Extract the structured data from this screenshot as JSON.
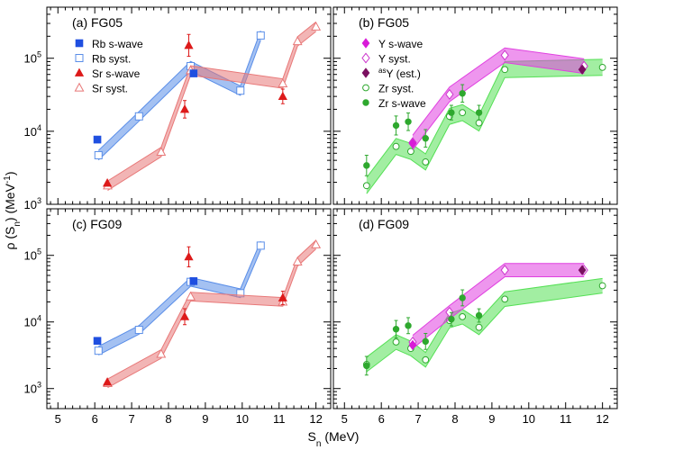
{
  "figure": {
    "ylabel": "ρ (S",
    "ylabel_sub": "n",
    "ylabel_tail": ") (MeV",
    "ylabel_sup": "-1",
    "ylabel_end": ")",
    "xlabel": "S",
    "xlabel_sub": "n",
    "xlabel_tail": " (MeV)",
    "y_tick_base": "10",
    "y_tick_exponents": [
      "3",
      "4",
      "5"
    ],
    "x_tick_labels": [
      "5",
      "6",
      "7",
      "8",
      "9",
      "10",
      "11",
      "12"
    ]
  },
  "chart_data": [
    {
      "id": "a",
      "type": "scatter",
      "title": "(a) FG05",
      "xlabel": "S_n (MeV)",
      "ylabel": "rho(S_n) (MeV^-1)",
      "xlim": [
        4.7,
        12.4
      ],
      "ylim": [
        1000,
        500000
      ],
      "yscale": "log",
      "legend": [
        {
          "label": "Rb s-wave",
          "marker": "square",
          "color": "#1f4fe0"
        },
        {
          "label": "Rb syst.",
          "marker": "open-square",
          "color": "#5a8ee8"
        },
        {
          "label": "Sr s-wave",
          "marker": "triangle",
          "color": "#dd1a1a"
        },
        {
          "label": "Sr syst.",
          "marker": "open-triangle",
          "color": "#e87878"
        }
      ],
      "series": [
        {
          "name": "Rb syst.",
          "style": "band",
          "color": "#5a8ee8",
          "x": [
            6.1,
            7.2,
            8.6,
            9.95,
            10.5
          ],
          "y": [
            4700,
            16000,
            78000,
            36000,
            205000
          ],
          "rel_width": 0.13
        },
        {
          "name": "Sr syst.",
          "style": "band",
          "color": "#e87878",
          "x": [
            6.35,
            7.8,
            8.6,
            11.1,
            11.5,
            12.0
          ],
          "y": [
            1800,
            5200,
            68000,
            45000,
            170000,
            270000
          ],
          "rel_width": 0.13
        },
        {
          "name": "Rb s-wave",
          "style": "points",
          "marker": "square",
          "color": "#1f4fe0",
          "x": [
            6.07,
            8.68
          ],
          "y": [
            7700,
            62000
          ],
          "err": [
            0.06,
            0.05
          ]
        },
        {
          "name": "Sr s-wave",
          "style": "points",
          "marker": "triangle",
          "color": "#dd1a1a",
          "x": [
            6.34,
            8.44,
            8.55,
            11.1
          ],
          "y": [
            1950,
            20000,
            150000,
            30000
          ],
          "err": [
            0.05,
            0.12,
            0.15,
            0.1
          ]
        }
      ]
    },
    {
      "id": "b",
      "type": "scatter",
      "title": "(b) FG05",
      "xlabel": "S_n (MeV)",
      "ylabel": "rho(S_n) (MeV^-1)",
      "xlim": [
        4.7,
        12.4
      ],
      "ylim": [
        1000,
        500000
      ],
      "yscale": "log",
      "legend": [
        {
          "label": "Y s-wave",
          "marker": "diamond",
          "color": "#d81bd8"
        },
        {
          "label": "Y syst.",
          "marker": "open-diamond",
          "color": "#cc33cc"
        },
        {
          "label": "Y (est.)",
          "label_prefix_sup": "as",
          "marker": "diamond",
          "color": "#7a0f60"
        },
        {
          "label": "Zr syst.",
          "marker": "open-circle",
          "color": "#2ea82e"
        },
        {
          "label": "Zr s-wave",
          "marker": "circle",
          "color": "#2ea82e"
        }
      ],
      "series": [
        {
          "name": "Zr syst.",
          "style": "band",
          "color": "#55e055",
          "x": [
            5.6,
            6.4,
            6.8,
            7.2,
            7.85,
            8.2,
            8.65,
            9.35,
            12.0
          ],
          "y": [
            1800,
            6200,
            5300,
            3800,
            16000,
            18000,
            13000,
            70000,
            75000
          ],
          "rel_width": 0.22
        },
        {
          "name": "Y syst.",
          "style": "band",
          "color": "#e040e0",
          "x": [
            6.85,
            7.85,
            9.35,
            11.5
          ],
          "y": [
            7000,
            32000,
            110000,
            78000
          ],
          "rel_width": 0.2
        },
        {
          "name": "Zr s-wave",
          "style": "points",
          "marker": "circle",
          "color": "#2ea82e",
          "x": [
            5.6,
            6.4,
            6.73,
            7.2,
            7.9,
            8.2,
            8.65
          ],
          "y": [
            3400,
            12000,
            13500,
            8000,
            18000,
            33000,
            18000
          ],
          "err": [
            0.14,
            0.13,
            0.12,
            0.12,
            0.1,
            0.12,
            0.1
          ]
        },
        {
          "name": "Y s-wave",
          "style": "points",
          "marker": "diamond",
          "color": "#d81bd8",
          "x": [
            6.85
          ],
          "y": [
            6800
          ],
          "err": [
            0.05
          ]
        },
        {
          "name": "Y (est.)",
          "style": "points",
          "marker": "diamond",
          "color": "#7a0f60",
          "x": [
            11.45
          ],
          "y": [
            70000
          ],
          "err": [
            0.05
          ]
        }
      ]
    },
    {
      "id": "c",
      "type": "scatter",
      "title": "(c) FG09",
      "xlabel": "S_n (MeV)",
      "ylabel": "rho(S_n) (MeV^-1)",
      "xlim": [
        4.7,
        12.4
      ],
      "ylim": [
        500,
        500000
      ],
      "yscale": "log",
      "legend": [],
      "series": [
        {
          "name": "Rb syst.",
          "style": "band",
          "color": "#5a8ee8",
          "x": [
            6.1,
            7.2,
            8.6,
            9.95,
            10.5
          ],
          "y": [
            3700,
            7600,
            40000,
            27000,
            140000
          ],
          "rel_width": 0.13
        },
        {
          "name": "Sr syst.",
          "style": "band",
          "color": "#e87878",
          "x": [
            6.35,
            7.8,
            8.6,
            11.1,
            11.5,
            12.0
          ],
          "y": [
            1200,
            3300,
            24000,
            20000,
            80000,
            145000
          ],
          "rel_width": 0.13
        },
        {
          "name": "Rb s-wave",
          "style": "points",
          "marker": "square",
          "color": "#1f4fe0",
          "x": [
            6.07,
            8.68
          ],
          "y": [
            5200,
            41000
          ],
          "err": [
            0.06,
            0.05
          ]
        },
        {
          "name": "Sr s-wave",
          "style": "points",
          "marker": "triangle",
          "color": "#dd1a1a",
          "x": [
            6.34,
            8.44,
            8.55,
            11.1
          ],
          "y": [
            1250,
            12000,
            95000,
            23000
          ],
          "err": [
            0.05,
            0.12,
            0.15,
            0.1
          ]
        }
      ]
    },
    {
      "id": "d",
      "type": "scatter",
      "title": "(d) FG09",
      "xlabel": "S_n (MeV)",
      "ylabel": "rho(S_n) (MeV^-1)",
      "xlim": [
        4.7,
        12.4
      ],
      "ylim": [
        500,
        500000
      ],
      "yscale": "log",
      "legend": [],
      "series": [
        {
          "name": "Zr syst.",
          "style": "band",
          "color": "#55e055",
          "x": [
            5.6,
            6.4,
            6.8,
            7.2,
            7.85,
            8.2,
            8.65,
            9.35,
            12.0
          ],
          "y": [
            2300,
            5000,
            4000,
            2700,
            10500,
            12000,
            8300,
            22000,
            35000
          ],
          "rel_width": 0.22
        },
        {
          "name": "Y syst.",
          "style": "band",
          "color": "#e040e0",
          "x": [
            6.85,
            7.85,
            9.35,
            11.5
          ],
          "y": [
            5000,
            14000,
            60000,
            60000
          ],
          "rel_width": 0.2
        },
        {
          "name": "Zr s-wave",
          "style": "points",
          "marker": "circle",
          "color": "#2ea82e",
          "x": [
            5.6,
            6.4,
            6.73,
            7.2,
            7.9,
            8.2,
            8.65
          ],
          "y": [
            2200,
            7800,
            8800,
            5100,
            11000,
            23000,
            12500
          ],
          "err": [
            0.14,
            0.13,
            0.12,
            0.12,
            0.1,
            0.12,
            0.1
          ]
        },
        {
          "name": "Y s-wave",
          "style": "points",
          "marker": "diamond",
          "color": "#d81bd8",
          "x": [
            6.85
          ],
          "y": [
            4500
          ],
          "err": [
            0.05
          ]
        },
        {
          "name": "Y (est.)",
          "style": "points",
          "marker": "diamond",
          "color": "#7a0f60",
          "x": [
            11.45
          ],
          "y": [
            60000
          ],
          "err": [
            0.05
          ]
        }
      ]
    }
  ]
}
